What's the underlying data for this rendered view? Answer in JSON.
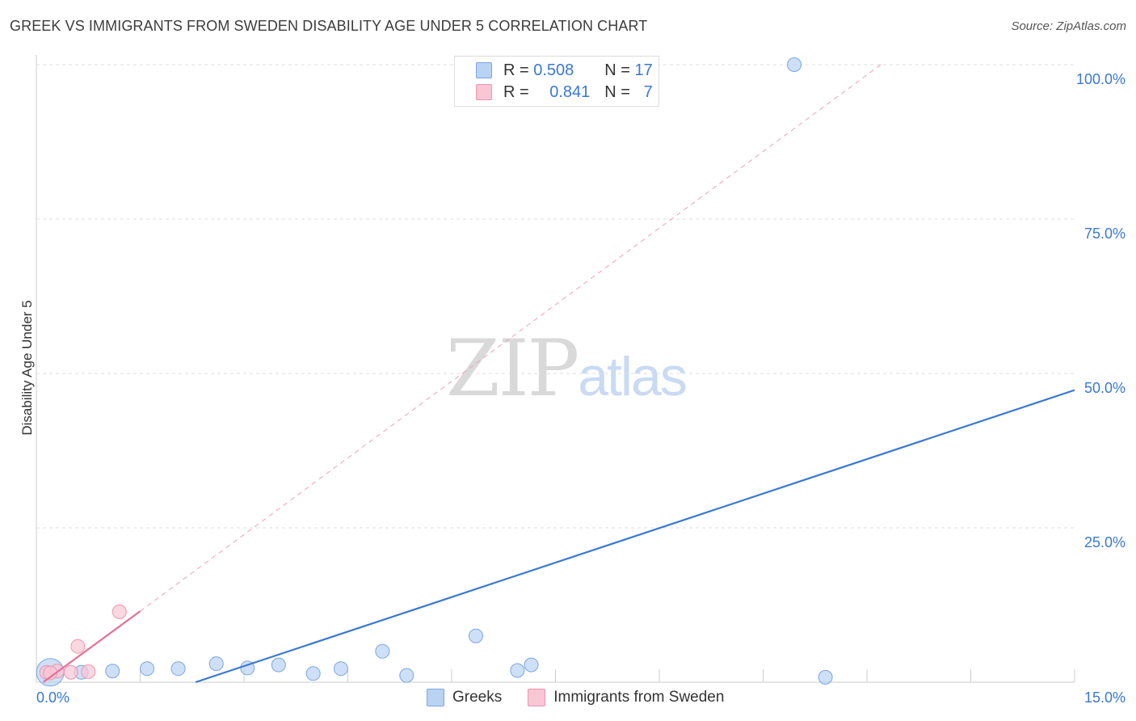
{
  "title": "GREEK VS IMMIGRANTS FROM SWEDEN DISABILITY AGE UNDER 5 CORRELATION CHART",
  "source": "Source: ZipAtlas.com",
  "watermark": {
    "zip": "ZIP",
    "atlas": "atlas"
  },
  "legend": {
    "r_label": "R =",
    "n_label": "N =",
    "rows": [
      {
        "r": "0.508",
        "n": "17",
        "fill": "#b9d3f3",
        "stroke": "#7aa6e0"
      },
      {
        "r": "0.841",
        "n": "7",
        "fill": "#f9c6d4",
        "stroke": "#ef94ae"
      }
    ]
  },
  "chart_data": {
    "type": "scatter",
    "title": "GREEK VS IMMIGRANTS FROM SWEDEN DISABILITY AGE UNDER 5 CORRELATION CHART",
    "xlabel": "",
    "ylabel": "Disability Age Under 5",
    "xlim": [
      0,
      15
    ],
    "ylim": [
      0,
      100
    ],
    "x_tick_labels": [
      "0.0%",
      "15.0%"
    ],
    "y_ticks": [
      25,
      50,
      75,
      100
    ],
    "y_tick_labels": [
      "25.0%",
      "50.0%",
      "75.0%",
      "100.0%"
    ],
    "grid": true,
    "series": [
      {
        "name": "Greeks",
        "color": "#3a78d4",
        "fill": "#b9d3f3",
        "stroke": "#7aa6e0",
        "points": [
          {
            "x": 0.2,
            "y": 1.6,
            "big": true
          },
          {
            "x": 0.65,
            "y": 1.6
          },
          {
            "x": 1.1,
            "y": 1.8
          },
          {
            "x": 1.6,
            "y": 2.2
          },
          {
            "x": 2.05,
            "y": 2.2
          },
          {
            "x": 2.6,
            "y": 3.0
          },
          {
            "x": 3.05,
            "y": 2.3
          },
          {
            "x": 3.5,
            "y": 2.8
          },
          {
            "x": 4.0,
            "y": 1.4
          },
          {
            "x": 4.4,
            "y": 2.2
          },
          {
            "x": 5.0,
            "y": 5.0
          },
          {
            "x": 5.35,
            "y": 1.1
          },
          {
            "x": 6.35,
            "y": 7.5
          },
          {
            "x": 6.95,
            "y": 1.9
          },
          {
            "x": 7.15,
            "y": 2.8
          },
          {
            "x": 10.95,
            "y": 100.0
          },
          {
            "x": 11.4,
            "y": 0.8
          }
        ],
        "trend": {
          "x0": 2.3,
          "y0": 0.0,
          "x1": 15.0,
          "y1": 47.3
        }
      },
      {
        "name": "Immigrants from Sweden",
        "color": "#e56f95",
        "fill": "#f9c6d4",
        "stroke": "#ef94ae",
        "points": [
          {
            "x": 0.15,
            "y": 1.6
          },
          {
            "x": 0.3,
            "y": 1.8
          },
          {
            "x": 0.5,
            "y": 1.6
          },
          {
            "x": 0.6,
            "y": 5.8
          },
          {
            "x": 0.75,
            "y": 1.7
          },
          {
            "x": 1.2,
            "y": 11.4
          },
          {
            "x": 0.2,
            "y": 1.5
          }
        ],
        "trend": {
          "x0": 0.1,
          "y0": 0.0,
          "x1": 1.5,
          "y1": 11.5
        },
        "trend_ext": {
          "x0": 1.5,
          "y0": 11.5,
          "x1": 12.2,
          "y1": 100.0
        }
      }
    ]
  }
}
